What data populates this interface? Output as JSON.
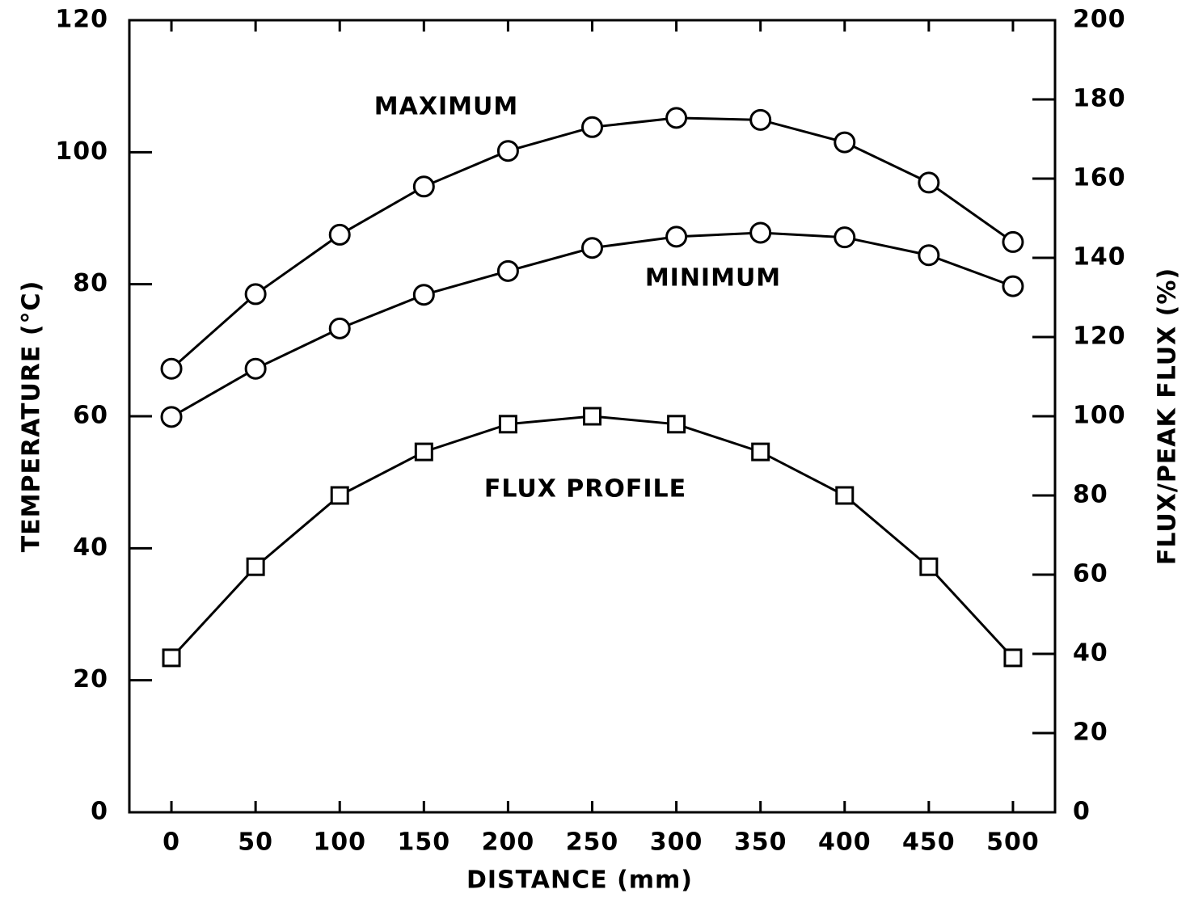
{
  "chart_data": {
    "type": "line",
    "x_label": "DISTANCE (mm)",
    "y_label": "TEMPERATURE (°C)",
    "y2_label": "FLUX/PEAK FLUX (%)",
    "x": [
      0,
      50,
      100,
      150,
      200,
      250,
      300,
      350,
      400,
      450,
      500
    ],
    "xlim": [
      -25,
      525
    ],
    "xticks": [
      0,
      50,
      100,
      150,
      200,
      250,
      300,
      350,
      400,
      450,
      500
    ],
    "ylim": [
      0,
      120
    ],
    "yticks": [
      0,
      20,
      40,
      60,
      80,
      100,
      120
    ],
    "y2lim": [
      0,
      200
    ],
    "y2ticks": [
      0,
      20,
      40,
      60,
      80,
      100,
      120,
      140,
      160,
      180,
      200
    ],
    "series": [
      {
        "name": "MAXIMUM",
        "color": "#000000",
        "marker": "circle",
        "values": [
          67.2,
          78.5,
          87.5,
          94.8,
          100.2,
          103.8,
          105.2,
          104.9,
          101.5,
          95.4,
          86.4
        ]
      },
      {
        "name": "MINIMUM",
        "color": "#000000",
        "marker": "circle",
        "values": [
          59.9,
          67.2,
          73.3,
          78.4,
          82.0,
          85.5,
          87.2,
          87.8,
          87.1,
          84.4,
          79.7
        ]
      },
      {
        "name": "FLUX PROFILE",
        "color": "#000000",
        "marker": "square",
        "axis": "y2",
        "values": [
          39,
          62,
          80,
          91,
          98,
          100,
          98,
          91,
          80,
          62,
          39
        ]
      }
    ]
  }
}
